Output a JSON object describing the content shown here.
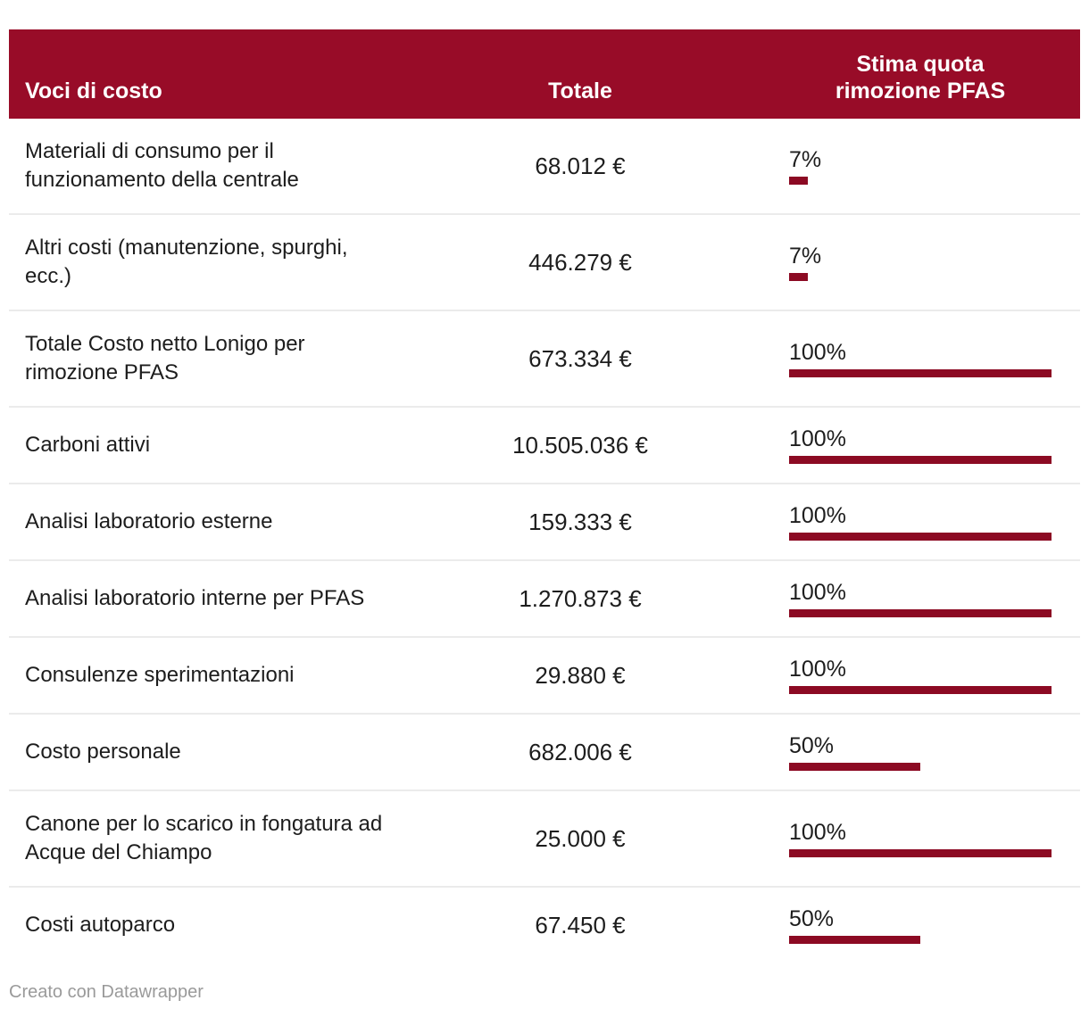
{
  "table": {
    "columns": [
      {
        "label": "Voci di costo"
      },
      {
        "label": "Totale"
      },
      {
        "label": "Stima quota\nrimozione PFAS"
      }
    ],
    "rows": [
      {
        "label": "Materiali di consumo per il funzionamento della centrale",
        "total": "68.012 €",
        "share_label": "7%",
        "share_pct": 7
      },
      {
        "label": "Altri costi (manutenzione, spurghi, ecc.)",
        "total": "446.279 €",
        "share_label": "7%",
        "share_pct": 7
      },
      {
        "label": "Totale Costo netto Lonigo per rimozione PFAS",
        "total": "673.334 €",
        "share_label": "100%",
        "share_pct": 100
      },
      {
        "label": "Carboni attivi",
        "total": "10.505.036 €",
        "share_label": "100%",
        "share_pct": 100
      },
      {
        "label": "Analisi laboratorio esterne",
        "total": "159.333 €",
        "share_label": "100%",
        "share_pct": 100
      },
      {
        "label": "Analisi laboratorio interne per PFAS",
        "total": "1.270.873 €",
        "share_label": "100%",
        "share_pct": 100
      },
      {
        "label": "Consulenze sperimentazioni",
        "total": "29.880 €",
        "share_label": "100%",
        "share_pct": 100
      },
      {
        "label": "Costo personale",
        "total": "682.006 €",
        "share_label": "50%",
        "share_pct": 50
      },
      {
        "label": "Canone per lo scarico in fongatura ad Acque del Chiampo",
        "total": "25.000 €",
        "share_label": "100%",
        "share_pct": 100
      },
      {
        "label": "Costi autoparco",
        "total": "67.450 €",
        "share_label": "50%",
        "share_pct": 50
      }
    ]
  },
  "chart_data": {
    "type": "table",
    "title": "",
    "columns": [
      "Voci di costo",
      "Totale",
      "Stima quota rimozione PFAS"
    ],
    "units": {
      "Totale": "EUR",
      "Stima quota rimozione PFAS": "%"
    },
    "rows": [
      [
        "Materiali di consumo per il funzionamento della centrale",
        68012,
        7
      ],
      [
        "Altri costi (manutenzione, spurghi, ecc.)",
        446279,
        7
      ],
      [
        "Totale Costo netto Lonigo per rimozione PFAS",
        673334,
        100
      ],
      [
        "Carboni attivi",
        10505036,
        100
      ],
      [
        "Analisi laboratorio esterne",
        159333,
        100
      ],
      [
        "Analisi laboratorio interne per PFAS",
        1270873,
        100
      ],
      [
        "Consulenze sperimentazioni",
        29880,
        100
      ],
      [
        "Costo personale",
        682006,
        50
      ],
      [
        "Canone per lo scarico in fongatura ad Acque del Chiampo",
        25000,
        100
      ],
      [
        "Costi autoparco",
        67450,
        50
      ]
    ],
    "bar_column": "Stima quota rimozione PFAS",
    "bar_range": [
      0,
      100
    ]
  },
  "footer": {
    "prefix": "Creato con ",
    "link_label": "Datawrapper"
  },
  "colors": {
    "header_bg": "#980c28",
    "bar_color": "#8c0a23",
    "divider": "#ebebeb",
    "text": "#1d1d1d",
    "header_text": "#ffffff",
    "footer_text": "#9a9a9a"
  }
}
